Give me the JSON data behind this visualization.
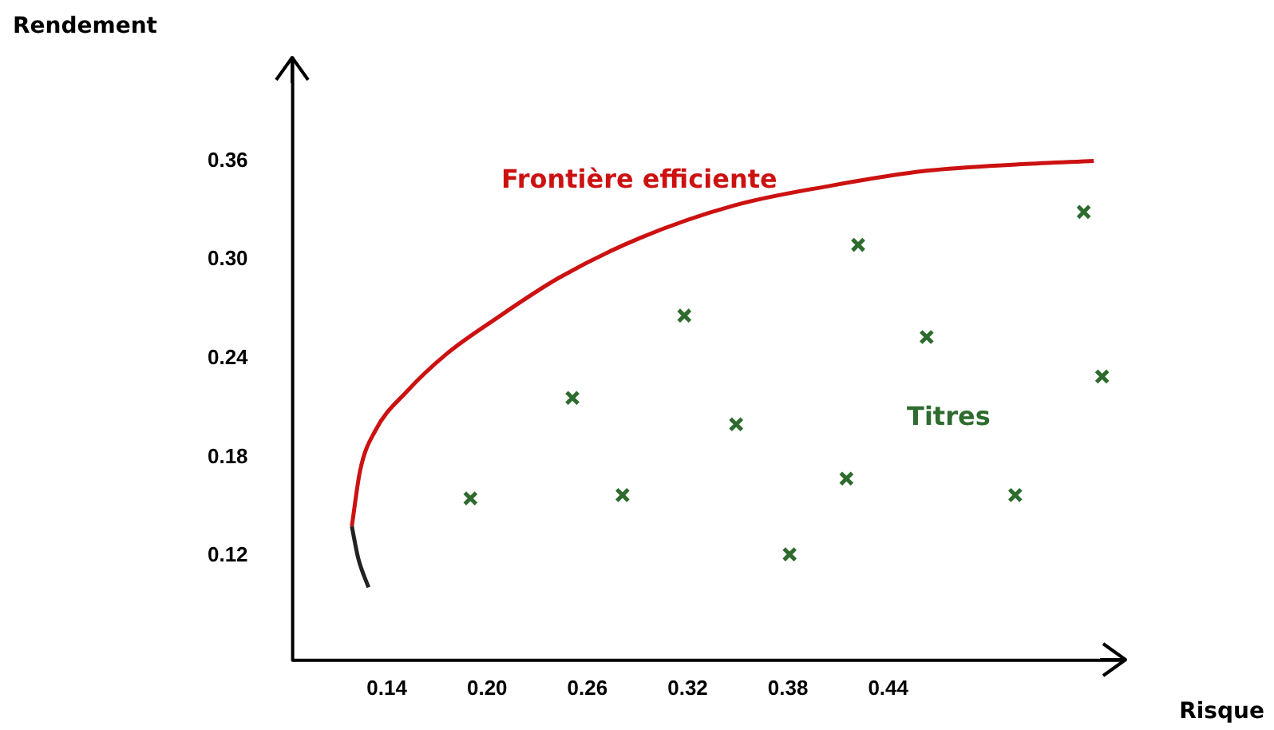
{
  "chart_data": {
    "type": "scatter",
    "xlabel": "Risque",
    "ylabel": "Rendement",
    "xlim": [
      0.0836,
      0.582
    ],
    "ylim": [
      0.0566,
      0.423
    ],
    "xticks": [
      {
        "value": 0.14,
        "label": "0.14"
      },
      {
        "value": 0.2,
        "label": "0.20"
      },
      {
        "value": 0.26,
        "label": "0.26"
      },
      {
        "value": 0.32,
        "label": "0.32"
      },
      {
        "value": 0.38,
        "label": "0.38"
      },
      {
        "value": 0.44,
        "label": "0.44"
      }
    ],
    "yticks": [
      {
        "value": 0.12,
        "label": "0.12"
      },
      {
        "value": 0.18,
        "label": "0.18"
      },
      {
        "value": 0.24,
        "label": "0.24"
      },
      {
        "value": 0.3,
        "label": "0.30"
      },
      {
        "value": 0.36,
        "label": "0.36"
      }
    ],
    "grid": false,
    "legend": false,
    "marker": "cross",
    "series": [
      {
        "type": "line",
        "color": "#222222",
        "marker": "none",
        "x": [
          0.129,
          0.123,
          0.119
        ],
        "values": [
          0.101,
          0.118,
          0.138
        ]
      },
      {
        "type": "line",
        "name": "Frontière efficiente",
        "color": "#cc1111",
        "marker": "none",
        "x": [
          0.119,
          0.124,
          0.133,
          0.152,
          0.176,
          0.205,
          0.243,
          0.291,
          0.348,
          0.406,
          0.463,
          0.52,
          0.563
        ],
        "values": [
          0.138,
          0.172,
          0.196,
          0.22,
          0.243,
          0.264,
          0.289,
          0.313,
          0.333,
          0.345,
          0.354,
          0.358,
          0.36
        ]
      },
      {
        "name": "Titres",
        "color": "#2e6b2e",
        "x": [
          0.19,
          0.251,
          0.281,
          0.318,
          0.349,
          0.381,
          0.415,
          0.422,
          0.463,
          0.516,
          0.557,
          0.568
        ],
        "values": [
          0.155,
          0.216,
          0.157,
          0.266,
          0.2,
          0.121,
          0.167,
          0.309,
          0.253,
          0.157,
          0.329,
          0.229
        ]
      }
    ]
  }
}
